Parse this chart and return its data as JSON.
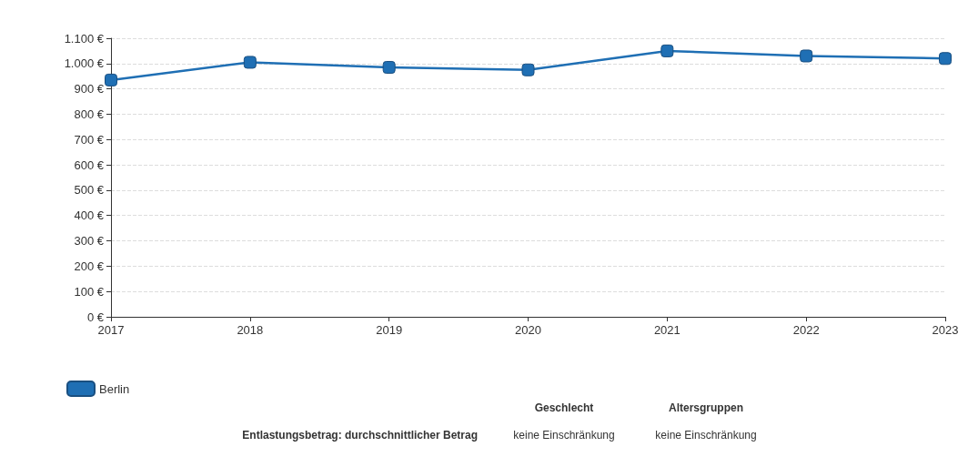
{
  "chart_data": {
    "type": "line",
    "x": [
      2017,
      2018,
      2019,
      2020,
      2021,
      2022,
      2023
    ],
    "series": [
      {
        "name": "Berlin",
        "color": "#1f6fb4",
        "values": [
          935,
          1005,
          985,
          975,
          1050,
          1030,
          1020
        ]
      }
    ],
    "xlim": [
      2017,
      2023
    ],
    "xticks": [
      2017,
      2018,
      2019,
      2020,
      2021,
      2022,
      2023
    ],
    "ylim": [
      0,
      1100
    ],
    "yticks": [
      {
        "value": 0,
        "label": "0 €"
      },
      {
        "value": 100,
        "label": "100 €"
      },
      {
        "value": 200,
        "label": "200 €"
      },
      {
        "value": 300,
        "label": "300 €"
      },
      {
        "value": 400,
        "label": "400 €"
      },
      {
        "value": 500,
        "label": "500 €"
      },
      {
        "value": 600,
        "label": "600 €"
      },
      {
        "value": 700,
        "label": "700 €"
      },
      {
        "value": 800,
        "label": "800 €"
      },
      {
        "value": 900,
        "label": "900 €"
      },
      {
        "value": 1000,
        "label": "1.000 €"
      },
      {
        "value": 1100,
        "label": "1.100 €"
      }
    ],
    "grid": "y",
    "legend": "bottom left",
    "marker": "square",
    "line_style": "solid",
    "annotations": [
      "Geschlecht",
      "Altersgruppen",
      "Entlastungsbetrag: durchschnittlicher Betrag",
      "keine Einschränkung",
      "keine Einschränkung"
    ]
  }
}
